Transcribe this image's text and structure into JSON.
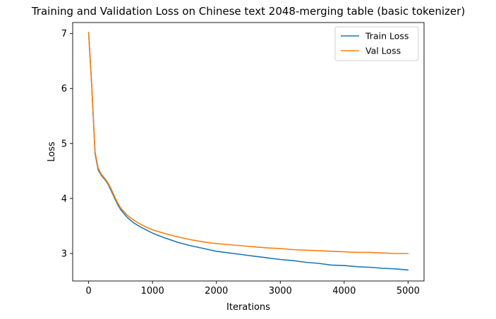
{
  "chart_data": {
    "type": "line",
    "title": "Training and Validation Loss on Chinese text 2048-merging table (basic tokenizer)",
    "xlabel": "Iterations",
    "ylabel": "Loss",
    "xlim": [
      -250,
      5250
    ],
    "ylim": [
      2.5,
      7.2
    ],
    "xticks": [
      0,
      1000,
      2000,
      3000,
      4000,
      5000
    ],
    "yticks": [
      3,
      4,
      5,
      6,
      7
    ],
    "grid": false,
    "legend": {
      "position": "top-right"
    },
    "series": [
      {
        "name": "Train Loss",
        "color": "#1f77b4",
        "x": [
          0,
          50,
          100,
          150,
          200,
          250,
          300,
          350,
          400,
          450,
          500,
          600,
          700,
          800,
          900,
          1000,
          1200,
          1400,
          1600,
          1800,
          2000,
          2200,
          2400,
          2600,
          2800,
          3000,
          3200,
          3400,
          3600,
          3800,
          4000,
          4200,
          4400,
          4600,
          4800,
          5000
        ],
        "y": [
          7.02,
          6.0,
          4.82,
          4.52,
          4.42,
          4.35,
          4.27,
          4.15,
          4.02,
          3.9,
          3.8,
          3.66,
          3.56,
          3.49,
          3.43,
          3.37,
          3.28,
          3.2,
          3.14,
          3.09,
          3.04,
          3.01,
          2.98,
          2.95,
          2.92,
          2.89,
          2.87,
          2.84,
          2.82,
          2.79,
          2.78,
          2.76,
          2.75,
          2.73,
          2.72,
          2.7
        ]
      },
      {
        "name": "Val Loss",
        "color": "#ff7f0e",
        "x": [
          0,
          50,
          100,
          150,
          200,
          250,
          300,
          350,
          400,
          450,
          500,
          600,
          700,
          800,
          900,
          1000,
          1200,
          1400,
          1600,
          1800,
          2000,
          2200,
          2400,
          2600,
          2800,
          3000,
          3200,
          3400,
          3600,
          3800,
          4000,
          4200,
          4400,
          4600,
          4800,
          5000
        ],
        "y": [
          7.02,
          6.02,
          4.85,
          4.55,
          4.44,
          4.37,
          4.29,
          4.18,
          4.05,
          3.93,
          3.83,
          3.7,
          3.61,
          3.54,
          3.48,
          3.43,
          3.36,
          3.3,
          3.25,
          3.21,
          3.18,
          3.16,
          3.14,
          3.12,
          3.1,
          3.09,
          3.07,
          3.06,
          3.05,
          3.04,
          3.03,
          3.02,
          3.02,
          3.01,
          3.0,
          3.0
        ]
      }
    ]
  }
}
